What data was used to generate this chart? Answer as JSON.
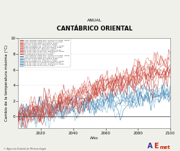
{
  "title": "CANTÁBRICO ORIENTAL",
  "subtitle": "ANUAL",
  "xlabel": "Año",
  "ylabel": "Cambio de la temperatura máxima (°C)",
  "xlim": [
    2006,
    2100
  ],
  "ylim": [
    -1.5,
    10
  ],
  "yticks": [
    0,
    2,
    4,
    6,
    8,
    10
  ],
  "xticks": [
    2020,
    2040,
    2060,
    2080,
    2100
  ],
  "x_start": 2006,
  "x_end": 2100,
  "n_red_series": 11,
  "n_blue_series": 8,
  "red_colors": [
    "#c0392b",
    "#e07060",
    "#c0392b",
    "#d45050",
    "#c0392b",
    "#e07060",
    "#c0392b",
    "#d45050",
    "#c0392b",
    "#e07060",
    "#c0392b"
  ],
  "blue_colors": [
    "#2471a3",
    "#7fb3d3",
    "#2471a3",
    "#7fb3d3",
    "#2471a3",
    "#7fb3d3",
    "#2471a3",
    "#7fb3d3"
  ],
  "background": "#f0f0eb",
  "plot_bg": "#ffffff",
  "legend_entries_red": [
    "CNRM-C5RCP85-CNRM-CM5- CLMcom-CCl Maiv1  RCPes",
    "CNRM-C5RCP85-CNRM-CM5- SMHI-RCA4  RCPes",
    "ICHEC-EC-EARTH KNMI-RACMO22E  RCPes",
    "IPSL-IPSL-CLMua v40  SMHI-RCA4  RCPes",
    "MHM2-rHadBEM2-GS- CLMcom-CCl Maiv1  RCPes",
    "MHM2-rHadBEM2-GS- SMHI-RACMO22E  RCPes",
    "MOHC-HadGEM2-ES- SMHI-RCA4  RCPes",
    "MPI-M-MPI-ESM-LR CLMcom-CCl Maiv1  RCPes",
    "MPI-M-MPI-ESM-LR MPI-CGC- HHMRCmom  RCPes",
    "MPI-M-MPI-ESM-LR SMHI-RCA4  RCPes",
    "NCC-NorESM1-M SMHI-RCA4  RCPes"
  ],
  "legend_entries_blue": [
    "CNRM-C5RCP26-CNRM-CM5- CLMcom-CCl Maiv1  RCPes",
    "CNRM-C5RCP26-CNRM-CM5- SMHI-RCA4  RCPes",
    "ICHEC-EC-EARTH KNMI-RACMO22E  RCPes",
    "IPSL-IPSL-CLMua v40  SMHI-RCA4  RCPes",
    "MHM2-rHadBEM2-GS- CLMcom-CCl Maiv1  RCPes",
    "MPI-M-MPI-ESM-LR CLMcom-CCl Maiv1  RCPes",
    "MPI-M-MPI-ESM-LR MPI-CGC- HHMRCmom  RCPes",
    "MPI-M-MPI-ESM-LR SMHI-RCA4  RCPes"
  ],
  "footer_text": "© Agencia Estatal de Meteorología"
}
